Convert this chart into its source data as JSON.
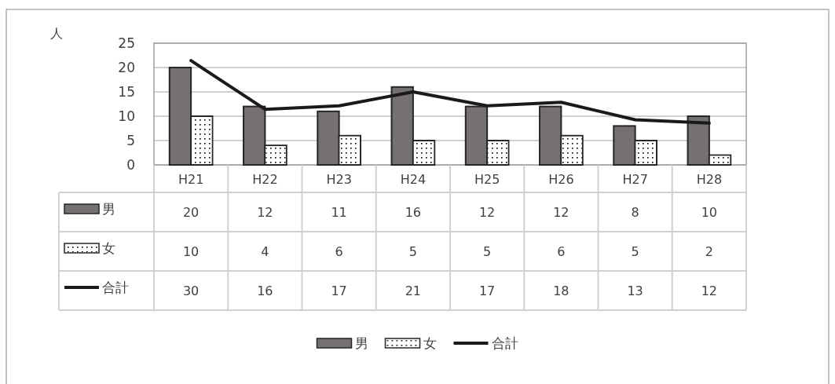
{
  "chart_data": {
    "type": "bar",
    "ylabel": "人",
    "categories": [
      "H21",
      "H22",
      "H23",
      "H24",
      "H25",
      "H26",
      "H27",
      "H28"
    ],
    "series": [
      {
        "name": "男",
        "color": "#767171",
        "values": [
          20,
          12,
          11,
          16,
          12,
          12,
          8,
          10
        ]
      },
      {
        "name": "女",
        "color": "#ffffff",
        "values": [
          10,
          4,
          6,
          5,
          5,
          6,
          5,
          2
        ]
      },
      {
        "name": "合計",
        "type": "line",
        "axis": "y2",
        "color": "#1a1a1a",
        "values": [
          30,
          16,
          17,
          21,
          17,
          18,
          13,
          12
        ]
      }
    ],
    "ylim": [
      0,
      25
    ],
    "yticks": [
      0,
      5,
      10,
      15,
      20,
      25
    ],
    "y2lim": [
      0,
      35
    ],
    "grid": "y",
    "legend": "bottom",
    "data_labels": true
  }
}
